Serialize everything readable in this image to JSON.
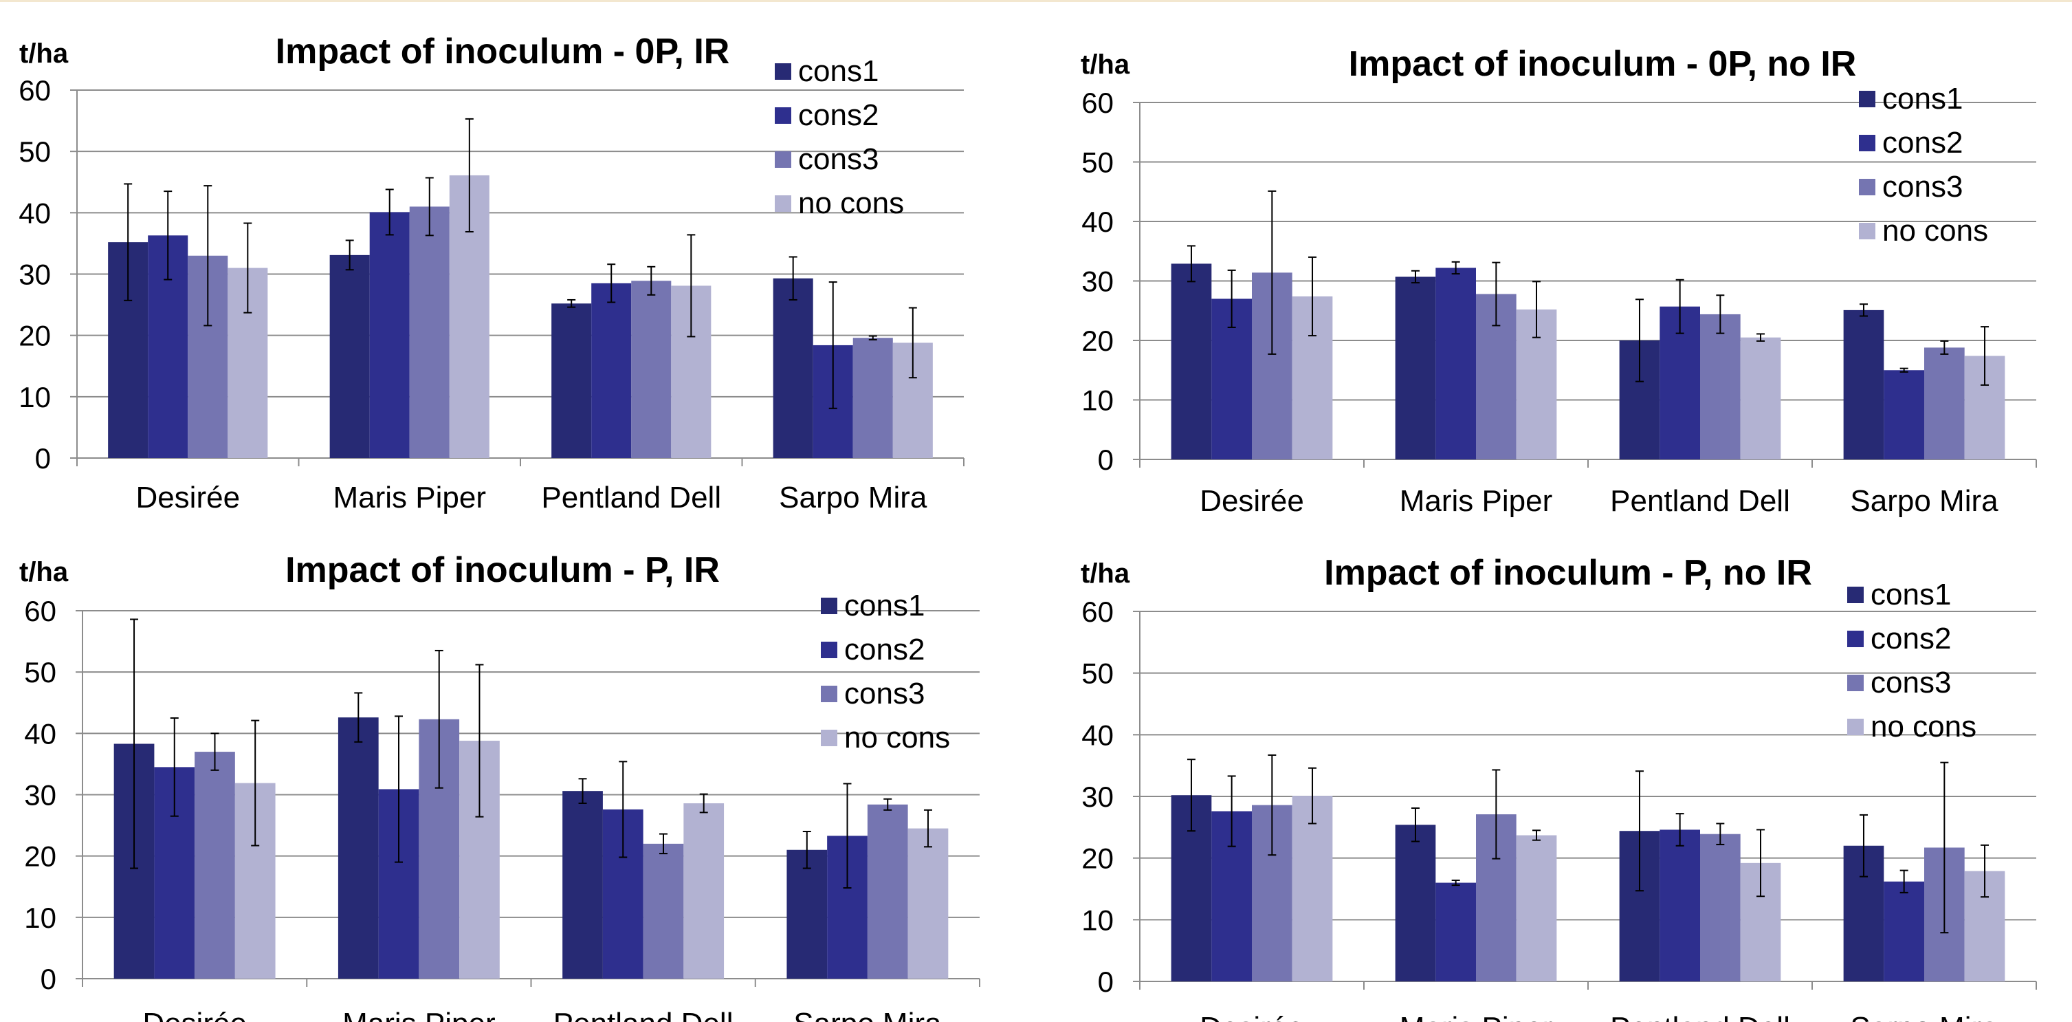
{
  "colors": {
    "cons1": "#272a74",
    "cons2": "#2e2f8e",
    "cons3": "#7575b1",
    "no cons": "#b2b2d2",
    "grid": "#8c8c8c"
  },
  "chart_data": [
    {
      "type": "bar",
      "title": "Impact of inoculum - 0P, IR",
      "ylabel": "t/ha",
      "ylim": [
        0,
        60
      ],
      "yticks": [
        "0",
        "10",
        "20",
        "30",
        "40",
        "50",
        "60"
      ],
      "categories": [
        "Desirée",
        "Maris Piper",
        "Pentland Dell",
        "Sarpo Mira"
      ],
      "legend": "top-right",
      "grid": true,
      "series": [
        {
          "name": "cons1",
          "values": [
            35.2,
            33.1,
            25.2,
            29.3
          ],
          "errors": [
            9.5,
            2.4,
            0.6,
            3.5
          ]
        },
        {
          "name": "cons2",
          "values": [
            36.3,
            40.1,
            28.5,
            18.4
          ],
          "errors": [
            7.2,
            3.7,
            3.1,
            10.3
          ]
        },
        {
          "name": "cons3",
          "values": [
            33.0,
            41.0,
            28.9,
            19.6
          ],
          "errors": [
            11.4,
            4.7,
            2.3,
            0.3
          ]
        },
        {
          "name": "no cons",
          "values": [
            31.0,
            46.1,
            28.1,
            18.8
          ],
          "errors": [
            7.3,
            9.2,
            8.3,
            5.7
          ]
        }
      ]
    },
    {
      "type": "bar",
      "title": "Impact of inoculum - 0P, no IR",
      "ylabel": "t/ha",
      "ylim": [
        0,
        60
      ],
      "yticks": [
        "0",
        "10",
        "20",
        "30",
        "40",
        "50",
        "60"
      ],
      "categories": [
        "Desirée",
        "Maris Piper",
        "Pentland Dell",
        "Sarpo Mira"
      ],
      "legend": "top-right",
      "grid": true,
      "series": [
        {
          "name": "cons1",
          "values": [
            32.9,
            30.7,
            20.0,
            25.1
          ],
          "errors": [
            3.0,
            1.0,
            6.9,
            1.0
          ]
        },
        {
          "name": "cons2",
          "values": [
            27.0,
            32.2,
            25.7,
            15.0
          ],
          "errors": [
            4.8,
            1.0,
            4.5,
            0.3
          ]
        },
        {
          "name": "cons3",
          "values": [
            31.4,
            27.8,
            24.4,
            18.8
          ],
          "errors": [
            13.7,
            5.3,
            3.2,
            1.1
          ]
        },
        {
          "name": "no cons",
          "values": [
            27.4,
            25.2,
            20.5,
            17.4
          ],
          "errors": [
            6.6,
            4.7,
            0.6,
            4.9
          ]
        }
      ]
    },
    {
      "type": "bar",
      "title": "Impact of inoculum - P, IR",
      "ylabel": "t/ha",
      "ylim": [
        0,
        60
      ],
      "yticks": [
        "0",
        "10",
        "20",
        "30",
        "40",
        "50",
        "60"
      ],
      "categories": [
        "Desirée",
        "Maris Piper",
        "Pentland Dell",
        "Sarpo Mira"
      ],
      "legend": "top-right",
      "grid": true,
      "series": [
        {
          "name": "cons1",
          "values": [
            38.3,
            42.6,
            30.6,
            21.0
          ],
          "errors": [
            20.3,
            4.0,
            2.0,
            3.0
          ]
        },
        {
          "name": "cons2",
          "values": [
            34.5,
            30.9,
            27.6,
            23.3
          ],
          "errors": [
            8.0,
            11.9,
            7.8,
            8.5
          ]
        },
        {
          "name": "cons3",
          "values": [
            37.0,
            42.3,
            22.0,
            28.4
          ],
          "errors": [
            3.0,
            11.2,
            1.6,
            0.9
          ]
        },
        {
          "name": "no cons",
          "values": [
            31.9,
            38.8,
            28.6,
            24.5
          ],
          "errors": [
            10.2,
            12.4,
            1.5,
            3.0
          ]
        }
      ]
    },
    {
      "type": "bar",
      "title": "Impact of inoculum - P, no IR",
      "ylabel": "t/ha",
      "ylim": [
        0,
        60
      ],
      "yticks": [
        "0",
        "10",
        "20",
        "30",
        "40",
        "50",
        "60"
      ],
      "categories": [
        "Desirée",
        "Maris Piper",
        "Pentland Dell",
        "Sarpo Mira"
      ],
      "legend": "top-right",
      "grid": true,
      "series": [
        {
          "name": "cons1",
          "values": [
            30.2,
            25.4,
            24.4,
            22.0
          ],
          "errors": [
            5.8,
            2.7,
            9.7,
            5.0
          ]
        },
        {
          "name": "cons2",
          "values": [
            27.6,
            16.0,
            24.6,
            16.2
          ],
          "errors": [
            5.7,
            0.4,
            2.6,
            1.8
          ]
        },
        {
          "name": "cons3",
          "values": [
            28.6,
            27.1,
            23.9,
            21.7
          ],
          "errors": [
            8.1,
            7.2,
            1.7,
            13.8
          ]
        },
        {
          "name": "no cons",
          "values": [
            30.1,
            23.7,
            19.2,
            17.9
          ],
          "errors": [
            4.5,
            0.8,
            5.4,
            4.2
          ]
        }
      ]
    }
  ]
}
